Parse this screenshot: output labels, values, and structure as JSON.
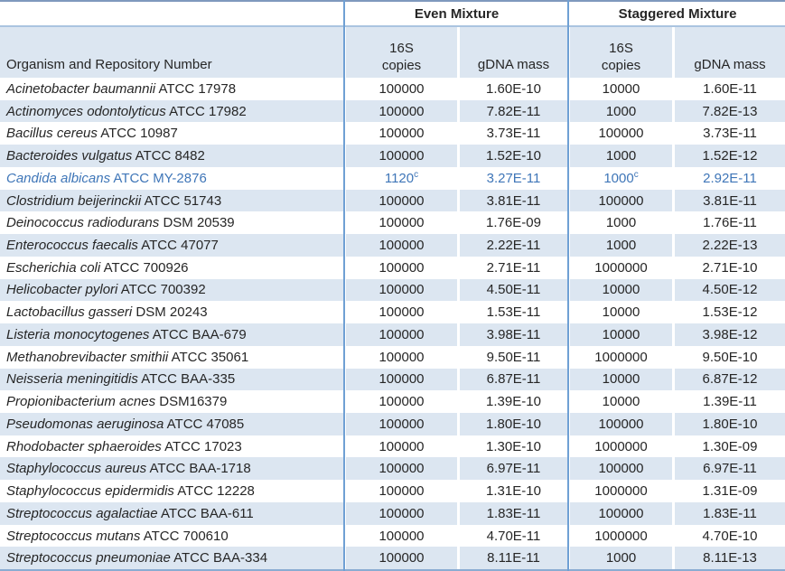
{
  "table": {
    "groups": {
      "even": "Even Mixture",
      "staggered": "Staggered Mixture"
    },
    "headers": {
      "organism": "Organism and Repository Number",
      "copies_line1": "16S",
      "copies_line2": "copies",
      "gdna": "gDNA mass"
    },
    "rows": [
      {
        "organism": "Acinetobacter baumannii",
        "repository": "ATCC 17978",
        "even_copies": "100000",
        "even_sup": "",
        "even_mass": "1.60E-10",
        "stag_copies": "10000",
        "stag_sup": "",
        "stag_mass": "1.60E-11",
        "highlight": false
      },
      {
        "organism": "Actinomyces odontolyticus",
        "repository": "ATCC 17982",
        "even_copies": "100000",
        "even_sup": "",
        "even_mass": "7.82E-11",
        "stag_copies": "1000",
        "stag_sup": "",
        "stag_mass": "7.82E-13",
        "highlight": false
      },
      {
        "organism": "Bacillus cereus",
        "repository": "ATCC 10987",
        "even_copies": "100000",
        "even_sup": "",
        "even_mass": "3.73E-11",
        "stag_copies": "100000",
        "stag_sup": "",
        "stag_mass": "3.73E-11",
        "highlight": false
      },
      {
        "organism": "Bacteroides vulgatus",
        "repository": "ATCC 8482",
        "even_copies": "100000",
        "even_sup": "",
        "even_mass": "1.52E-10",
        "stag_copies": "1000",
        "stag_sup": "",
        "stag_mass": "1.52E-12",
        "highlight": false
      },
      {
        "organism": "Candida albicans",
        "repository": "ATCC MY-2876",
        "even_copies": "1120",
        "even_sup": "c",
        "even_mass": "3.27E-11",
        "stag_copies": "1000",
        "stag_sup": "c",
        "stag_mass": "2.92E-11",
        "highlight": true
      },
      {
        "organism": "Clostridium beijerinckii",
        "repository": "ATCC 51743",
        "even_copies": "100000",
        "even_sup": "",
        "even_mass": "3.81E-11",
        "stag_copies": "100000",
        "stag_sup": "",
        "stag_mass": "3.81E-11",
        "highlight": false
      },
      {
        "organism": "Deinococcus radiodurans",
        "repository": "DSM 20539",
        "even_copies": "100000",
        "even_sup": "",
        "even_mass": "1.76E-09",
        "stag_copies": "1000",
        "stag_sup": "",
        "stag_mass": "1.76E-11",
        "highlight": false
      },
      {
        "organism": "Enterococcus faecalis",
        "repository": "ATCC 47077",
        "even_copies": "100000",
        "even_sup": "",
        "even_mass": "2.22E-11",
        "stag_copies": "1000",
        "stag_sup": "",
        "stag_mass": "2.22E-13",
        "highlight": false
      },
      {
        "organism": "Escherichia coli",
        "repository": "ATCC 700926",
        "even_copies": "100000",
        "even_sup": "",
        "even_mass": "2.71E-11",
        "stag_copies": "1000000",
        "stag_sup": "",
        "stag_mass": "2.71E-10",
        "highlight": false
      },
      {
        "organism": "Helicobacter pylori",
        "repository": "ATCC 700392",
        "even_copies": "100000",
        "even_sup": "",
        "even_mass": "4.50E-11",
        "stag_copies": "10000",
        "stag_sup": "",
        "stag_mass": "4.50E-12",
        "highlight": false
      },
      {
        "organism": "Lactobacillus gasseri",
        "repository": "DSM 20243",
        "even_copies": "100000",
        "even_sup": "",
        "even_mass": "1.53E-11",
        "stag_copies": "10000",
        "stag_sup": "",
        "stag_mass": "1.53E-12",
        "highlight": false
      },
      {
        "organism": "Listeria monocytogenes",
        "repository": "ATCC BAA-679",
        "even_copies": "100000",
        "even_sup": "",
        "even_mass": "3.98E-11",
        "stag_copies": "10000",
        "stag_sup": "",
        "stag_mass": "3.98E-12",
        "highlight": false
      },
      {
        "organism": "Methanobrevibacter smithii",
        "repository": "ATCC 35061",
        "even_copies": "100000",
        "even_sup": "",
        "even_mass": "9.50E-11",
        "stag_copies": "1000000",
        "stag_sup": "",
        "stag_mass": "9.50E-10",
        "highlight": false
      },
      {
        "organism": "Neisseria meningitidis",
        "repository": "ATCC BAA-335",
        "even_copies": "100000",
        "even_sup": "",
        "even_mass": "6.87E-11",
        "stag_copies": "10000",
        "stag_sup": "",
        "stag_mass": "6.87E-12",
        "highlight": false
      },
      {
        "organism": "Propionibacterium acnes",
        "repository": "DSM16379",
        "even_copies": "100000",
        "even_sup": "",
        "even_mass": "1.39E-10",
        "stag_copies": "10000",
        "stag_sup": "",
        "stag_mass": "1.39E-11",
        "highlight": false
      },
      {
        "organism": "Pseudomonas aeruginosa",
        "repository": "ATCC 47085",
        "even_copies": "100000",
        "even_sup": "",
        "even_mass": "1.80E-10",
        "stag_copies": "100000",
        "stag_sup": "",
        "stag_mass": "1.80E-10",
        "highlight": false
      },
      {
        "organism": "Rhodobacter sphaeroides",
        "repository": "ATCC 17023",
        "even_copies": "100000",
        "even_sup": "",
        "even_mass": "1.30E-10",
        "stag_copies": "1000000",
        "stag_sup": "",
        "stag_mass": "1.30E-09",
        "highlight": false
      },
      {
        "organism": "Staphylococcus aureus",
        "repository": "ATCC BAA-1718",
        "even_copies": "100000",
        "even_sup": "",
        "even_mass": "6.97E-11",
        "stag_copies": "100000",
        "stag_sup": "",
        "stag_mass": "6.97E-11",
        "highlight": false
      },
      {
        "organism": "Staphylococcus epidermidis",
        "repository": "ATCC 12228",
        "even_copies": "100000",
        "even_sup": "",
        "even_mass": "1.31E-10",
        "stag_copies": "1000000",
        "stag_sup": "",
        "stag_mass": "1.31E-09",
        "highlight": false
      },
      {
        "organism": "Streptococcus agalactiae",
        "repository": "ATCC BAA-611",
        "even_copies": "100000",
        "even_sup": "",
        "even_mass": "1.83E-11",
        "stag_copies": "100000",
        "stag_sup": "",
        "stag_mass": "1.83E-11",
        "highlight": false
      },
      {
        "organism": "Streptococcus mutans",
        "repository": "ATCC 700610",
        "even_copies": "100000",
        "even_sup": "",
        "even_mass": "4.70E-11",
        "stag_copies": "1000000",
        "stag_sup": "",
        "stag_mass": "4.70E-10",
        "highlight": false
      },
      {
        "organism": "Streptococcus pneumoniae",
        "repository": "ATCC BAA-334",
        "even_copies": "100000",
        "even_sup": "",
        "even_mass": "8.11E-11",
        "stag_copies": "1000",
        "stag_sup": "",
        "stag_mass": "8.11E-13",
        "highlight": false
      }
    ]
  },
  "colors": {
    "stripe": "#dce6f1",
    "border_inner": "#6fa0d4",
    "border_top": "#7f99bd",
    "border_bottom": "#8aacd2",
    "header_divider": "#aac4e0",
    "highlight_text": "#3f76b8"
  }
}
